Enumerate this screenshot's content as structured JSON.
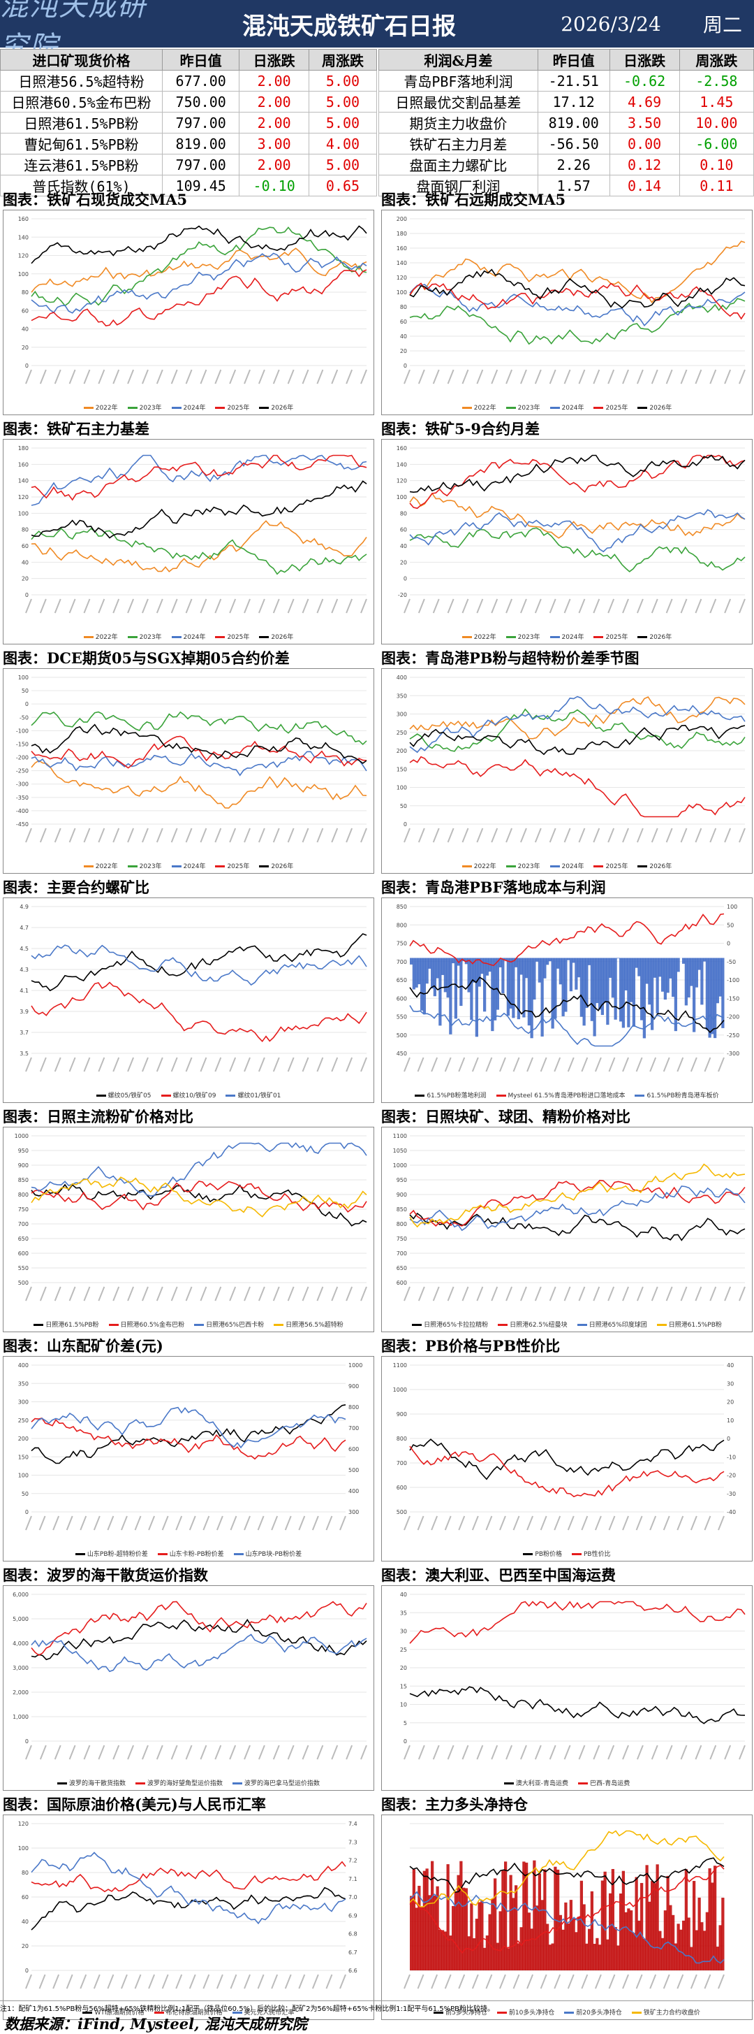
{
  "header": {
    "logo_text": "混沌天成研究院",
    "title": "混沌天成铁矿石日报",
    "date": "2026/3/24",
    "weekday": "周二"
  },
  "colors": {
    "header_bg": "#203864",
    "up": "#e00000",
    "down": "#00a000"
  },
  "left_table": {
    "headers": [
      "进口矿现货价格",
      "昨日值",
      "日涨跌",
      "周涨跌"
    ],
    "rows": [
      {
        "name": "日照港56.5%超特粉",
        "value": "677.00",
        "d": "2.00",
        "w": "5.00",
        "dc": "red",
        "wc": "red"
      },
      {
        "name": "日照港60.5%金布巴粉",
        "value": "750.00",
        "d": "2.00",
        "w": "5.00",
        "dc": "red",
        "wc": "red"
      },
      {
        "name": "日照港61.5%PB粉",
        "value": "797.00",
        "d": "2.00",
        "w": "5.00",
        "dc": "red",
        "wc": "red"
      },
      {
        "name": "曹妃甸61.5%PB粉",
        "value": "819.00",
        "d": "3.00",
        "w": "4.00",
        "dc": "red",
        "wc": "red"
      },
      {
        "name": "连云港61.5%PB粉",
        "value": "797.00",
        "d": "2.00",
        "w": "5.00",
        "dc": "red",
        "wc": "red"
      },
      {
        "name": "普氏指数(61%)",
        "value": "109.45",
        "d": "-0.10",
        "w": "0.65",
        "dc": "green",
        "wc": "red"
      }
    ]
  },
  "right_table": {
    "headers": [
      "利润&月差",
      "昨日值",
      "日涨跌",
      "周涨跌"
    ],
    "rows": [
      {
        "name": "青岛PBF落地利润",
        "value": "-21.51",
        "d": "-0.62",
        "w": "-2.58",
        "dc": "green",
        "wc": "green"
      },
      {
        "name": "日照最优交割品基差",
        "value": "17.12",
        "d": "4.69",
        "w": "1.45",
        "dc": "red",
        "wc": "red"
      },
      {
        "name": "期货主力收盘价",
        "value": "819.00",
        "d": "3.50",
        "w": "10.00",
        "dc": "red",
        "wc": "red"
      },
      {
        "name": "铁矿石主力月差",
        "value": "-56.50",
        "d": "0.00",
        "w": "-6.00",
        "dc": "red",
        "wc": "green"
      },
      {
        "name": "盘面主力螺矿比",
        "value": "2.26",
        "d": "0.12",
        "w": "0.10",
        "dc": "red",
        "wc": "red"
      },
      {
        "name": "盘面钢厂利润",
        "value": "1.57",
        "d": "0.14",
        "w": "0.11",
        "dc": "red",
        "wc": "red"
      }
    ]
  },
  "panels": [
    {
      "title": "图表：铁矿石现货成交MA5",
      "legend": [
        "2022年",
        "2023年",
        "2024年",
        "2025年",
        "2026年"
      ],
      "yticks": [
        "160",
        "140",
        "120",
        "100",
        "80",
        "60",
        "40",
        "20",
        "0"
      ],
      "yticks_right": []
    },
    {
      "title": "图表：铁矿石远期成交MA5",
      "legend": [
        "2022年",
        "2023年",
        "2024年",
        "2025年",
        "2026年"
      ],
      "yticks": [
        "200",
        "180",
        "160",
        "140",
        "120",
        "100",
        "80",
        "60",
        "40",
        "20",
        "0"
      ],
      "yticks_right": []
    },
    {
      "title": "图表：铁矿石主力基差",
      "legend": [
        "2022年",
        "2023年",
        "2024年",
        "2025年",
        "2026年"
      ],
      "yticks": [
        "180",
        "160",
        "140",
        "120",
        "100",
        "80",
        "60",
        "40",
        "20",
        "0"
      ],
      "yticks_right": []
    },
    {
      "title": "图表：铁矿5-9合约月差",
      "legend": [
        "2022年",
        "2023年",
        "2024年",
        "2025年",
        "2026年"
      ],
      "yticks": [
        "160",
        "140",
        "120",
        "100",
        "80",
        "60",
        "40",
        "20",
        "0",
        "-20"
      ],
      "yticks_right": []
    },
    {
      "title": "图表：DCE期货05与SGX掉期05合约价差",
      "legend": [
        "2022年",
        "2023年",
        "2024年",
        "2025年",
        "2026年"
      ],
      "yticks": [
        "100",
        "50",
        "0",
        "-50",
        "-100",
        "-150",
        "-200",
        "-250",
        "-300",
        "-350",
        "-400",
        "-450"
      ],
      "yticks_right": []
    },
    {
      "title": "图表：青岛港PB粉与超特粉价差季节图",
      "legend": [
        "2022年",
        "2023年",
        "2024年",
        "2025年",
        "2026年"
      ],
      "yticks": [
        "400",
        "350",
        "300",
        "250",
        "200",
        "150",
        "100",
        "50",
        "0"
      ],
      "yticks_right": []
    },
    {
      "title": "图表：主要合约螺矿比",
      "legend": [
        "螺纹05/铁矿05",
        "螺纹10/铁矿09",
        "螺纹01/铁矿01"
      ],
      "yticks": [
        "4.9",
        "4.7",
        "4.5",
        "4.3",
        "4.1",
        "3.9",
        "3.7",
        "3.5"
      ],
      "yticks_right": []
    },
    {
      "title": "图表：青岛港PBF落地成本与利润",
      "legend": [
        "61.5%PB粉落地利润",
        "Mysteel 61.5%青岛港PB粉进口落地成本",
        "61.5%PB粉青岛港车板价"
      ],
      "yticks": [
        "850",
        "800",
        "750",
        "700",
        "650",
        "600",
        "550",
        "500",
        "450"
      ],
      "yticks_right": [
        "100",
        "50",
        "0",
        "-50",
        "-100",
        "-150",
        "-200",
        "-250",
        "-300"
      ]
    },
    {
      "title": "图表：日照主流粉矿价格对比",
      "legend": [
        "日照港61.5%PB粉",
        "日照港60.5%金布巴粉",
        "日照港65%巴西卡粉",
        "日照港56.5%超特粉"
      ],
      "yticks": [
        "1000",
        "950",
        "900",
        "850",
        "800",
        "750",
        "700",
        "650",
        "600",
        "550",
        "500"
      ],
      "yticks_right": []
    },
    {
      "title": "图表：日照块矿、球团、精粉价格对比",
      "legend": [
        "日照港65%卡拉拉精粉",
        "日照港62.5%纽曼块",
        "日照港65%印度球团",
        "日照港61.5%PB粉"
      ],
      "yticks": [
        "1100",
        "1050",
        "1000",
        "950",
        "900",
        "850",
        "800",
        "750",
        "700",
        "650",
        "600"
      ],
      "yticks_right": []
    },
    {
      "title": "图表：山东配矿价差(元)",
      "legend": [
        "山东PB粉-超特粉价差",
        "山东卡粉-PB粉价差",
        "山东PB块-PB粉价差"
      ],
      "yticks": [
        "400",
        "350",
        "300",
        "250",
        "200",
        "150",
        "100",
        "50",
        "0"
      ],
      "yticks_right": [
        "1000",
        "900",
        "800",
        "700",
        "600",
        "500",
        "400",
        "300"
      ]
    },
    {
      "title": "图表：PB价格与PB性价比",
      "legend": [
        "PB粉价格",
        "PB性价比"
      ],
      "yticks": [
        "1100",
        "1000",
        "900",
        "800",
        "700",
        "600",
        "500"
      ],
      "yticks_right": [
        "40",
        "30",
        "20",
        "10",
        "0",
        "-10",
        "-20",
        "-30",
        "-40"
      ]
    },
    {
      "title": "图表：波罗的海干散货运价指数",
      "legend": [
        "波罗的海干散货指数",
        "波罗的海好望角型运价指数",
        "波罗的海巴拿马型运价指数"
      ],
      "yticks": [
        "6,000",
        "5,000",
        "4,000",
        "3,000",
        "2,000",
        "1,000",
        "0"
      ],
      "yticks_right": []
    },
    {
      "title": "图表：澳大利亚、巴西至中国海运费",
      "legend": [
        "澳大利亚-青岛运费",
        "巴西-青岛运费"
      ],
      "yticks": [
        "40",
        "35",
        "30",
        "25",
        "20",
        "15",
        "10",
        "5",
        "0"
      ],
      "yticks_right": []
    },
    {
      "title": "图表：国际原油价格(美元)与人民币汇率",
      "legend": [
        "WTI原油期货价格",
        "布伦特原油期货价格",
        "美元兑人民币汇率"
      ],
      "yticks": [
        "120",
        "100",
        "80",
        "60",
        "40",
        "20",
        "0"
      ],
      "yticks_right": [
        "7.4",
        "7.3",
        "7.2",
        "7.1",
        "7.0",
        "6.9",
        "6.8",
        "6.7",
        "6.6"
      ]
    },
    {
      "title": "图表：主力多头净持仓",
      "legend": [
        "前5多头净持仓",
        "前10多头净持仓",
        "前20多头净持仓",
        "铁矿主力合约收盘价"
      ],
      "yticks": [
        "",
        "",
        "",
        "",
        "",
        "",
        ""
      ],
      "yticks_right": [
        "",
        "",
        "",
        "",
        ""
      ]
    }
  ],
  "footnote": "注1：配矿1为61.5%PB粉与56%超特+65%铁精粉比例1:1配平（铁品位60.5%）后的比较；配矿2为56%超特+65%卡粉比例1:1配平与61.5%PB粉比较持。",
  "source": "数据来源：iFind, Mysteel, 混沌天成研究院"
}
